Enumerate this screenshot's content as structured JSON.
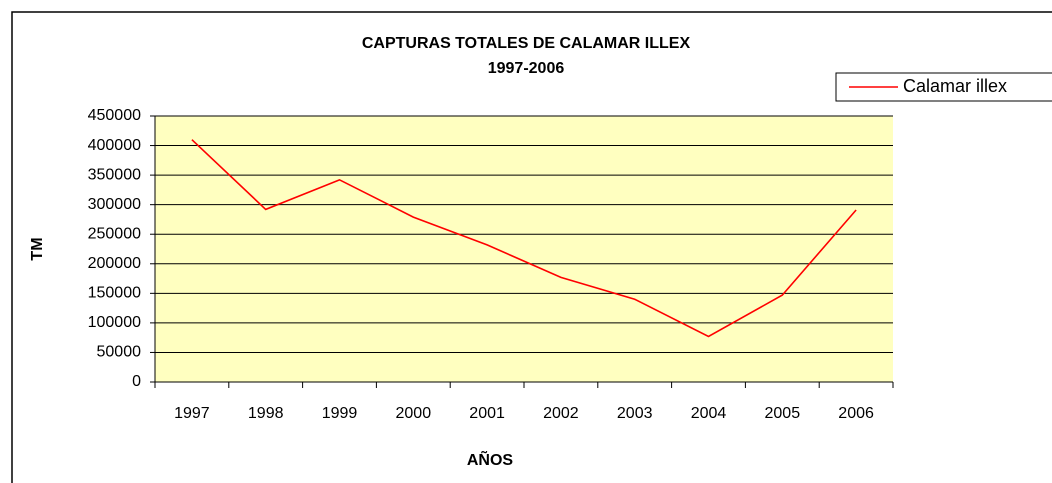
{
  "chart_data": {
    "type": "line",
    "title": "CAPTURAS TOTALES DE CALAMAR ILLEX",
    "subtitle": "1997-2006",
    "x_label": "AÑOS",
    "y_label": "TM",
    "categories": [
      "1997",
      "1998",
      "1999",
      "2000",
      "2001",
      "2002",
      "2003",
      "2004",
      "2005",
      "2006"
    ],
    "series": [
      {
        "name": "Calamar illex",
        "color": "#ff0000",
        "values": [
          410000,
          292000,
          342000,
          279000,
          232000,
          177000,
          140000,
          77000,
          147000,
          291000
        ]
      }
    ],
    "ylim": [
      0,
      450000
    ],
    "yticks": [
      0,
      50000,
      100000,
      150000,
      200000,
      250000,
      300000,
      350000,
      400000,
      450000
    ],
    "grid": true,
    "legend": "top-right",
    "plot_background": "#ffffc0"
  }
}
